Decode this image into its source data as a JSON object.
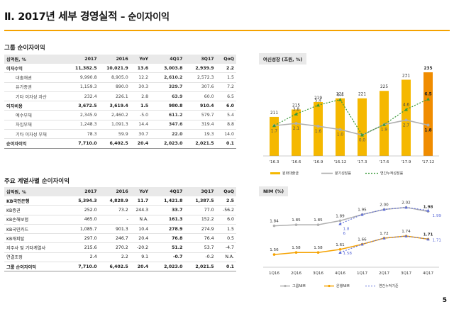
{
  "page": {
    "title_main": "Ⅱ. 2017년 세부 경영실적",
    "title_sub": "– 순이자이익",
    "page_number": "5"
  },
  "table1": {
    "section_title": "그룹 순이자이익",
    "headers": [
      "십억원, %",
      "2017",
      "2016",
      "YoY",
      "4Q17",
      "3Q17",
      "QoQ"
    ],
    "rows": [
      {
        "label": "이자수익",
        "kind": "bold",
        "cells": [
          "11,382.5",
          "10,021.9",
          "13.6",
          "3,003.8",
          "2,939.9",
          "2.2"
        ]
      },
      {
        "label": "대출채권",
        "kind": "sub",
        "cells": [
          "9,990.8",
          "8,905.0",
          "12.2",
          "2,610.2",
          "2,572.3",
          "1.5"
        ]
      },
      {
        "label": "유가증권",
        "kind": "sub",
        "cells": [
          "1,159.3",
          "890.0",
          "30.3",
          "329.7",
          "307.6",
          "7.2"
        ]
      },
      {
        "label": "기타 이자성 자산",
        "kind": "sub",
        "cells": [
          "232.4",
          "226.1",
          "2.8",
          "63.9",
          "60.0",
          "6.5"
        ]
      },
      {
        "label": "이자비용",
        "kind": "bold",
        "cells": [
          "3,672.5",
          "3,619.4",
          "1.5",
          "980.8",
          "910.4",
          "6.0"
        ]
      },
      {
        "label": "예수부채",
        "kind": "sub",
        "cells": [
          "2,345.9",
          "2,460.2",
          "-5.0",
          "611.2",
          "579.7",
          "5.4"
        ]
      },
      {
        "label": "차입부채",
        "kind": "sub",
        "cells": [
          "1,248.3",
          "1,091.3",
          "14.4",
          "347.6",
          "319.4",
          "8.8"
        ]
      },
      {
        "label": "기타 이자성 부채",
        "kind": "sub",
        "cells": [
          "78.3",
          "59.9",
          "30.7",
          "22.0",
          "19.3",
          "14.0"
        ]
      },
      {
        "label": "순이자이익",
        "kind": "total",
        "cells": [
          "7,710.0",
          "6,402.5",
          "20.4",
          "2,023.0",
          "2,021.5",
          "0.1"
        ]
      }
    ]
  },
  "table2": {
    "section_title": "주요 계열사별 순이자이익",
    "headers": [
      "십억원, %",
      "2017",
      "2016",
      "YoY",
      "4Q17",
      "3Q17",
      "QoQ"
    ],
    "rows": [
      {
        "label": "KB국민은행",
        "kind": "bold",
        "cells": [
          "5,394.3",
          "4,828.9",
          "11.7",
          "1,421.8",
          "1,387.5",
          "2.5"
        ]
      },
      {
        "label": "KB증권",
        "kind": "plain",
        "cells": [
          "252.0",
          "73.2",
          "244.3",
          "33.7",
          "77.0",
          "-56.2"
        ]
      },
      {
        "label": "KB손해보험",
        "kind": "plain",
        "cells": [
          "465.0",
          "-",
          "N.A.",
          "161.3",
          "152.2",
          "6.0"
        ]
      },
      {
        "label": "KB국민카드",
        "kind": "plain",
        "cells": [
          "1,085.7",
          "901.3",
          "10.4",
          "278.9",
          "274.9",
          "1.5"
        ]
      },
      {
        "label": "KB캐피탈",
        "kind": "plain",
        "cells": [
          "297.0",
          "246.7",
          "20.4",
          "76.8",
          "76.4",
          "0.5"
        ]
      },
      {
        "label": "지주사 및 기타계열사",
        "kind": "plain",
        "cells": [
          "215.6",
          "270.2",
          "-20.2",
          "51.2",
          "53.7",
          "-4.7"
        ]
      },
      {
        "label": "연결조정",
        "kind": "plain",
        "cells": [
          "2.4",
          "2.2",
          "9.1",
          "-0.7",
          "-0.2",
          "N.A."
        ]
      },
      {
        "label": "그룹 순이자이익",
        "kind": "total",
        "cells": [
          "7,710.0",
          "6,402.5",
          "20.4",
          "2,023.0",
          "2,021.5",
          "0.1"
        ]
      }
    ]
  },
  "chart_data": [
    {
      "type": "bar",
      "title": "여신성장 (조원, %)",
      "categories": [
        "'16.3",
        "'16.6",
        "'16.9",
        "'16.12",
        "'17.3",
        "'17.6",
        "'17.9",
        "'17.12"
      ],
      "series": [
        {
          "name": "원화대출금",
          "type": "bar",
          "values": [
            211,
            215,
            219,
            221,
            221,
            225,
            231,
            235
          ],
          "labels": [
            "211",
            "215",
            "219",
            "221",
            "221",
            "225",
            "231",
            "235"
          ]
        },
        {
          "name": "분기성장률",
          "type": "line",
          "values": [
            1.7,
            2.1,
            1.6,
            1.0,
            0.0,
            1.9,
            2.7,
            1.8
          ],
          "labels": [
            "1.7",
            "2.1",
            "1.6",
            "1.0",
            "0.0",
            "1.9",
            "2.7",
            "1.8"
          ]
        },
        {
          "name": "연간누적성장률",
          "type": "line",
          "values": [
            1.7,
            3.8,
            5.4,
            6.4,
            0.0,
            1.9,
            4.6,
            6.5
          ],
          "labels": [
            "1.7",
            "3.8",
            "5.4",
            "6.4",
            "0.0",
            "1.9",
            "4.6",
            "6.5"
          ]
        }
      ],
      "bar_range": [
        190,
        235
      ],
      "rate_range": [
        -3,
        8
      ],
      "highlight_last_bar": true,
      "colors": {
        "bar": "#f5b800",
        "bar_highlight": "#f08c00",
        "quarterly": "#b0b0b0",
        "cumulative": "#3a9a3a"
      },
      "legend_position": "bottom"
    },
    {
      "type": "line",
      "title": "NIM (%)",
      "categories": [
        "1Q16",
        "2Q16",
        "3Q16",
        "4Q16",
        "1Q17",
        "2Q17",
        "3Q17",
        "4Q17"
      ],
      "series": [
        {
          "name": "그룹NIM",
          "values": [
            1.84,
            1.85,
            1.85,
            1.89,
            1.95,
            2.0,
            2.02,
            1.98
          ],
          "labels": [
            "1.84",
            "1.85",
            "1.85",
            "1.89",
            "1.95",
            "2.00",
            "2.02",
            "1.98"
          ]
        },
        {
          "name": "은행NIM",
          "values": [
            1.56,
            1.58,
            1.58,
            1.61,
            1.66,
            1.72,
            1.74,
            1.71
          ],
          "labels": [
            "1.56",
            "1.58",
            "1.58",
            "1.61",
            "1.66",
            "1.72",
            "1.74",
            "1.71"
          ]
        },
        {
          "name": "연간누적기준",
          "values": [
            null,
            null,
            null,
            1.58,
            1.66,
            1.72,
            1.74,
            1.71
          ],
          "dashed": true,
          "labels": [
            "",
            "",
            "",
            "1.58",
            "",
            "",
            "",
            "1.71"
          ]
        },
        {
          "name": "연간누적기준",
          "values": [
            null,
            null,
            null,
            1.86,
            1.95,
            2.0,
            2.02,
            1.99
          ],
          "dashed": true,
          "hidden_in_legend": true,
          "labels": [
            "",
            "",
            "",
            "1.8\n6",
            "",
            "",
            "",
            "1.99"
          ]
        }
      ],
      "ylim": [
        1.45,
        2.1
      ],
      "colors": {
        "group": "#b0b0b0",
        "bank": "#f5a200",
        "cumulative": "#5a6ad8"
      },
      "legend_position": "bottom"
    }
  ]
}
